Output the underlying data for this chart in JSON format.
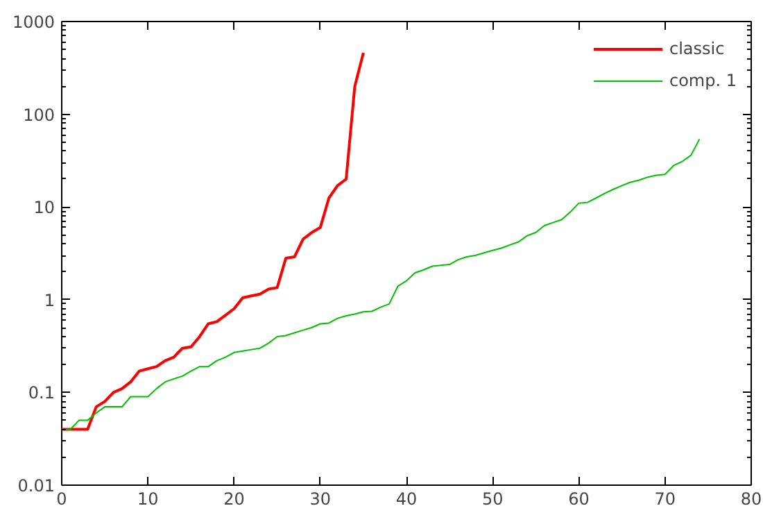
{
  "chart_data": {
    "type": "line",
    "log": "y",
    "xlim": [
      0,
      80
    ],
    "xticks": [
      0,
      10,
      20,
      30,
      40,
      50,
      60,
      70,
      80
    ],
    "ylim": [
      0.01,
      1000
    ],
    "yticks": [
      {
        "value": 0.01,
        "label": "0.01"
      },
      {
        "value": 0.1,
        "label": "0.1"
      },
      {
        "value": 1,
        "label": "1"
      },
      {
        "value": 10,
        "label": "10"
      },
      {
        "value": 100,
        "label": "100"
      },
      {
        "value": 1000,
        "label": "1000"
      }
    ],
    "grid": false,
    "legend": "top right",
    "marker": "none",
    "line_style": "solid",
    "series": [
      {
        "name": "classic",
        "color": "#ff0000",
        "x": [
          0,
          1,
          2,
          3,
          4,
          5,
          6,
          7,
          8,
          9,
          10,
          11,
          12,
          13,
          14,
          15,
          16,
          17,
          18,
          19,
          20,
          21,
          22,
          23,
          24,
          25,
          26,
          27,
          28,
          29,
          30,
          31,
          32,
          33,
          34,
          35
        ],
        "values": [
          0.04,
          0.04,
          0.04,
          0.04,
          0.07,
          0.08,
          0.1,
          0.11,
          0.13,
          0.17,
          0.18,
          0.19,
          0.22,
          0.24,
          0.3,
          0.31,
          0.4,
          0.55,
          0.58,
          0.68,
          0.8,
          1.05,
          1.1,
          1.15,
          1.3,
          1.35,
          2.8,
          2.9,
          4.5,
          5.3,
          6,
          12.5,
          17,
          20,
          200,
          460
        ]
      },
      {
        "name": "comp. 1",
        "color": "#00c000",
        "x": [
          0,
          1,
          2,
          3,
          4,
          5,
          6,
          7,
          8,
          9,
          10,
          11,
          12,
          13,
          14,
          15,
          16,
          17,
          18,
          19,
          20,
          21,
          22,
          23,
          24,
          25,
          26,
          27,
          28,
          29,
          30,
          31,
          32,
          33,
          34,
          35,
          36,
          37,
          38,
          39,
          40,
          41,
          42,
          43,
          44,
          45,
          46,
          47,
          48,
          49,
          50,
          51,
          52,
          53,
          54,
          55,
          56,
          57,
          58,
          59,
          60,
          61,
          62,
          63,
          64,
          65,
          66,
          67,
          68,
          69,
          70,
          71,
          72,
          73,
          74
        ],
        "values": [
          0.04,
          0.04,
          0.05,
          0.05,
          0.06,
          0.07,
          0.07,
          0.07,
          0.09,
          0.09,
          0.09,
          0.11,
          0.13,
          0.14,
          0.15,
          0.17,
          0.19,
          0.19,
          0.22,
          0.24,
          0.27,
          0.28,
          0.29,
          0.3,
          0.34,
          0.4,
          0.41,
          0.44,
          0.47,
          0.5,
          0.55,
          0.56,
          0.63,
          0.67,
          0.7,
          0.74,
          0.75,
          0.83,
          0.9,
          1.4,
          1.6,
          1.95,
          2.1,
          2.3,
          2.35,
          2.4,
          2.7,
          2.9,
          3.0,
          3.2,
          3.4,
          3.6,
          3.9,
          4.2,
          4.9,
          5.3,
          6.3,
          6.8,
          7.3,
          8.8,
          11,
          11.2,
          12.5,
          14,
          15.5,
          17,
          18.5,
          19.5,
          21,
          22,
          22.5,
          28,
          31,
          36,
          54
        ]
      }
    ]
  }
}
